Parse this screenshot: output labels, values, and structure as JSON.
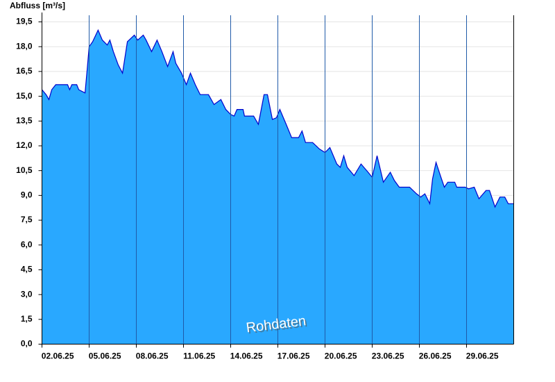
{
  "chart_data": {
    "type": "area",
    "y_label": "Abfluss [m³/s]",
    "annotation": "Rohdaten",
    "color": "#29a8ff",
    "line_color": "#0000cc",
    "grid": true,
    "xlim": [
      0,
      30
    ],
    "ylim": [
      0,
      19.9
    ],
    "xticks": [
      {
        "value": 0,
        "label": "02.06.25"
      },
      {
        "value": 3,
        "label": "05.06.25"
      },
      {
        "value": 6,
        "label": "08.06.25"
      },
      {
        "value": 9,
        "label": "11.06.25"
      },
      {
        "value": 12,
        "label": "14.06.25"
      },
      {
        "value": 15,
        "label": "17.06.25"
      },
      {
        "value": 18,
        "label": "20.06.25"
      },
      {
        "value": 21,
        "label": "23.06.25"
      },
      {
        "value": 24,
        "label": "26.06.25"
      },
      {
        "value": 27,
        "label": "29.06.25"
      }
    ],
    "yticks": [
      {
        "value": 0,
        "label": "0,0"
      },
      {
        "value": 1.5,
        "label": "1,5"
      },
      {
        "value": 3,
        "label": "3,0"
      },
      {
        "value": 4.5,
        "label": "4,5"
      },
      {
        "value": 6,
        "label": "6,0"
      },
      {
        "value": 7.5,
        "label": "7,5"
      },
      {
        "value": 9,
        "label": "9,0"
      },
      {
        "value": 10.5,
        "label": "10,5"
      },
      {
        "value": 12,
        "label": "12,0"
      },
      {
        "value": 13.5,
        "label": "13,5"
      },
      {
        "value": 15,
        "label": "15,0"
      },
      {
        "value": 16.5,
        "label": "16,5"
      },
      {
        "value": 18,
        "label": "18,0"
      },
      {
        "value": 19.5,
        "label": "19,5"
      }
    ],
    "x": [
      0,
      0.26,
      0.44,
      0.62,
      0.88,
      1.63,
      1.76,
      1.9,
      2.21,
      2.34,
      2.74,
      2.87,
      3,
      3.22,
      3.57,
      3.84,
      4.15,
      4.32,
      4.54,
      4.85,
      5.12,
      5.43,
      5.87,
      6.09,
      6.44,
      6.62,
      6.97,
      7.32,
      7.63,
      7.99,
      8.34,
      8.51,
      8.87,
      9.18,
      9.44,
      9.75,
      10.06,
      10.59,
      10.94,
      11.38,
      11.69,
      12,
      12.22,
      12.4,
      12.79,
      12.88,
      13.46,
      13.76,
      14.12,
      14.34,
      14.65,
      14.91,
      15.13,
      15.53,
      15.88,
      16.32,
      16.54,
      16.76,
      17.21,
      17.65,
      18,
      18.31,
      18.75,
      18.97,
      19.19,
      19.41,
      19.85,
      20.29,
      20.74,
      21,
      21.31,
      21.71,
      22.15,
      22.41,
      22.72,
      23.38,
      23.82,
      24.09,
      24.35,
      24.66,
      24.84,
      25.06,
      25.37,
      25.59,
      25.81,
      26.25,
      26.38,
      26.91,
      27.13,
      27.49,
      27.79,
      28.24,
      28.46,
      28.81,
      29.12,
      29.43,
      29.65,
      30
    ],
    "values": [
      15.4,
      15.1,
      14.8,
      15.4,
      15.7,
      15.7,
      15.4,
      15.7,
      15.7,
      15.4,
      15.2,
      16.6,
      18.0,
      18.3,
      19.0,
      18.4,
      18.1,
      18.4,
      17.7,
      16.9,
      16.4,
      18.3,
      18.7,
      18.4,
      18.7,
      18.4,
      17.7,
      18.4,
      17.7,
      16.8,
      17.7,
      17.0,
      16.4,
      15.7,
      16.4,
      15.7,
      15.1,
      15.1,
      14.5,
      14.8,
      14.2,
      13.9,
      13.8,
      14.2,
      14.2,
      13.8,
      13.8,
      13.3,
      15.1,
      15.1,
      13.6,
      13.7,
      14.2,
      13.3,
      12.5,
      12.5,
      12.9,
      12.2,
      12.2,
      11.8,
      11.6,
      11.9,
      10.9,
      10.7,
      11.4,
      10.7,
      10.2,
      10.9,
      10.4,
      10.1,
      11.4,
      9.8,
      10.4,
      9.9,
      9.5,
      9.5,
      9.1,
      8.9,
      9.1,
      8.5,
      10.0,
      11.0,
      10.1,
      9.5,
      9.8,
      9.8,
      9.5,
      9.5,
      9.4,
      9.5,
      8.8,
      9.3,
      9.3,
      8.3,
      8.9,
      8.9,
      8.5,
      8.5
    ]
  }
}
